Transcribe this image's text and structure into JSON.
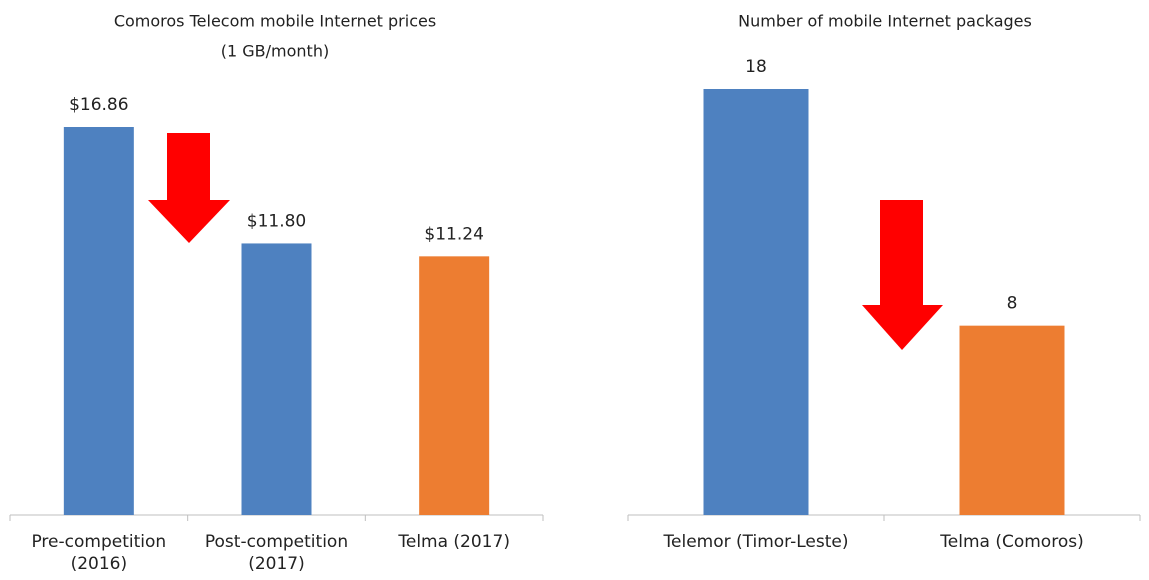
{
  "chart_data": [
    {
      "type": "bar",
      "title": "Comoros Telecom mobile Internet prices",
      "subtitle": "(1 GB/month)",
      "categories": [
        "Pre-competition (2016)",
        "Post-competition (2017)",
        "Telma (2017)"
      ],
      "values": [
        16.86,
        11.8,
        11.24
      ],
      "value_labels": [
        "$16.86",
        "$11.80",
        "$11.24"
      ],
      "colors": [
        "#4e81c0",
        "#4e81c0",
        "#ed7d31"
      ]
    },
    {
      "type": "bar",
      "title": "Number of mobile Internet packages",
      "categories": [
        "Telemor (Timor-Leste)",
        "Telma (Comoros)"
      ],
      "values": [
        18,
        8
      ],
      "colors": [
        "#4e81c0",
        "#ed7d31"
      ]
    }
  ]
}
